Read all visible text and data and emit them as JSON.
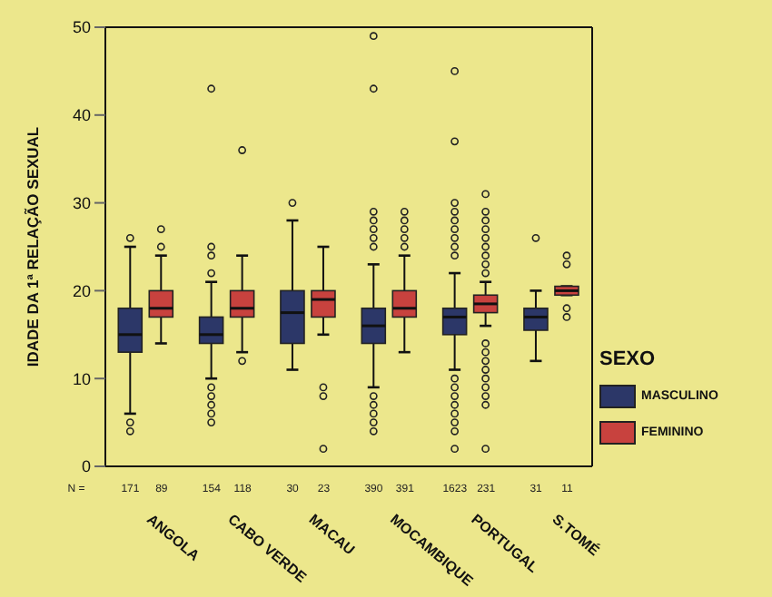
{
  "chart_data": {
    "type": "box",
    "ylabel": "IDADE DA 1ª RELAÇÃO SEXUAL",
    "legend_title": "SEXO",
    "legend": "right",
    "categories": [
      "ANGOLA",
      "CABO VERDE",
      "MACAU",
      "MOCAMBIQUE",
      "PORTUGAL",
      "S.TOMÉ"
    ],
    "ylim": [
      0,
      50
    ],
    "yticks": [
      0,
      10,
      20,
      30,
      40,
      50
    ],
    "annotations": [
      "N =",
      "171",
      "89",
      "154",
      "118",
      "30",
      "23",
      "390",
      "391",
      "1623",
      "231",
      "31",
      "11"
    ],
    "series": [
      {
        "name": "MASCULINO",
        "color": "#2c3768",
        "boxes": [
          {
            "low": 6,
            "q1": 13,
            "median": 15,
            "q3": 18,
            "high": 25,
            "outliers": [
              4,
              5,
              26
            ]
          },
          {
            "low": 10,
            "q1": 14,
            "median": 15,
            "q3": 17,
            "high": 21,
            "outliers": [
              5,
              6,
              7,
              8,
              9,
              22,
              24,
              25,
              43
            ]
          },
          {
            "low": 11,
            "q1": 14,
            "median": 17.5,
            "q3": 20,
            "high": 28,
            "outliers": [
              30
            ]
          },
          {
            "low": 9,
            "q1": 14,
            "median": 16,
            "q3": 18,
            "high": 23,
            "outliers": [
              4,
              5,
              6,
              7,
              8,
              25,
              26,
              27,
              28,
              29,
              43,
              49
            ]
          },
          {
            "low": 11,
            "q1": 15,
            "median": 17,
            "q3": 18,
            "high": 22,
            "outliers": [
              2,
              4,
              5,
              6,
              7,
              8,
              9,
              10,
              24,
              25,
              26,
              27,
              28,
              29,
              30,
              37,
              45
            ]
          },
          {
            "low": 12,
            "q1": 15.5,
            "median": 17,
            "q3": 18,
            "high": 20,
            "outliers": [
              26
            ]
          }
        ]
      },
      {
        "name": "FEMININO",
        "color": "#c8423e",
        "boxes": [
          {
            "low": 14,
            "q1": 17,
            "median": 18,
            "q3": 20,
            "high": 24,
            "outliers": [
              25,
              27
            ]
          },
          {
            "low": 13,
            "q1": 17,
            "median": 18,
            "q3": 20,
            "high": 24,
            "outliers": [
              12,
              36
            ]
          },
          {
            "low": 15,
            "q1": 17,
            "median": 19,
            "q3": 20,
            "high": 25,
            "outliers": [
              2,
              8,
              9
            ]
          },
          {
            "low": 13,
            "q1": 17,
            "median": 18,
            "q3": 20,
            "high": 24,
            "outliers": [
              25,
              26,
              27,
              28,
              29
            ]
          },
          {
            "low": 16,
            "q1": 17.5,
            "median": 18.5,
            "q3": 19.5,
            "high": 21,
            "outliers": [
              2,
              7,
              8,
              9,
              10,
              11,
              12,
              13,
              14,
              22,
              23,
              24,
              25,
              26,
              27,
              28,
              29,
              31
            ]
          },
          {
            "low": 19.5,
            "q1": 19.5,
            "median": 20,
            "q3": 20.5,
            "high": 20.5,
            "outliers": [
              17,
              18,
              23,
              24
            ]
          }
        ]
      }
    ]
  }
}
